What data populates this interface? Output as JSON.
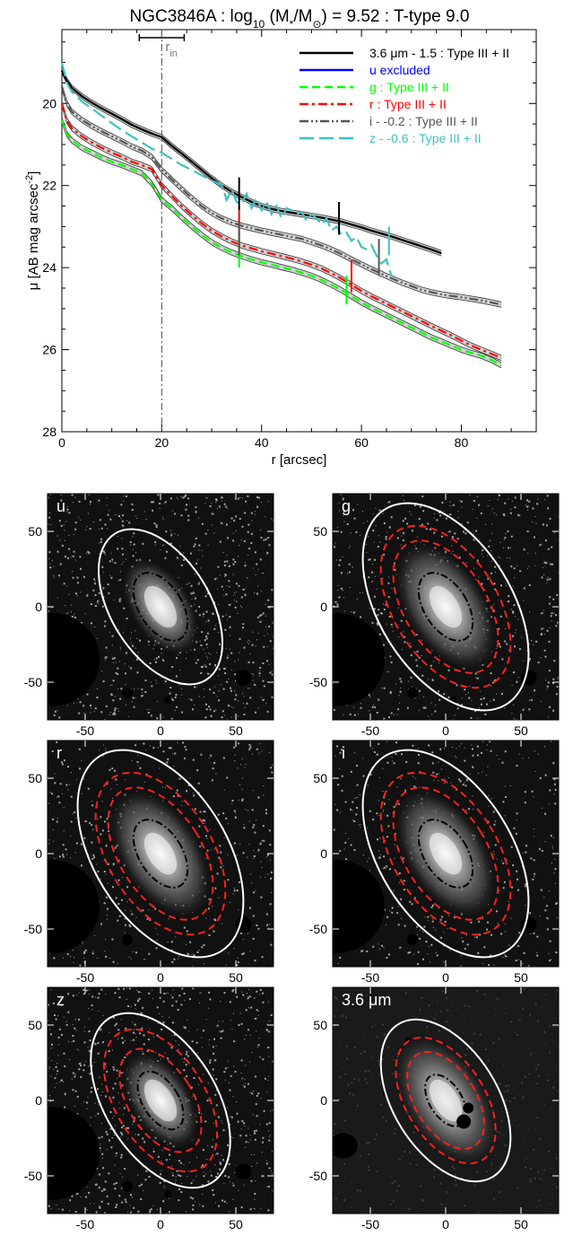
{
  "chart_data": [
    {
      "type": "line",
      "title": "NGC3846A : log",
      "title_sub": "10",
      "title_mid": " (M",
      "title_sub2": "*",
      "title_mid2": "/M",
      "title_sun": "⊙",
      "title_end": ") = 9.52 : T-type 9.0",
      "xlabel": "r [arcsec]",
      "ylabel": "μ [AB mag arcsec",
      "ylabel_sup": "-2",
      "ylabel_end": "]",
      "xlim": [
        0,
        95
      ],
      "ylim": [
        28,
        18.2
      ],
      "yreversed": true,
      "x_ticks": [
        "0",
        "20",
        "40",
        "60",
        "80"
      ],
      "x_tick_values": [
        0,
        20,
        40,
        60,
        80
      ],
      "y_ticks": [
        "20",
        "22",
        "24",
        "26",
        "28"
      ],
      "y_tick_values": [
        20,
        22,
        24,
        26,
        28
      ],
      "r_in": 20,
      "r_in_label": "r",
      "r_in_sub": "in",
      "r_in_errorbar": [
        15.5,
        24.5
      ],
      "legend_placement": "top-right",
      "legend": [
        {
          "label": "3.6 μm - 1.5 : Type III + II",
          "color": "#000000",
          "dash": "solid"
        },
        {
          "label": "u excluded",
          "color": "#0000ff",
          "dash": "solid"
        },
        {
          "label": "g : Type III + II",
          "color": "#00ff00",
          "dash": "dashed"
        },
        {
          "label": "r : Type III + II",
          "color": "#ff0000",
          "dash": "dashdot"
        },
        {
          "label": "i - -0.2 : Type III + II",
          "color": "#555555",
          "dash": "dashdotdot"
        },
        {
          "label": "z - -0.6 : Type III + II",
          "color": "#40c0c0",
          "dash": "longdash"
        }
      ],
      "series": [
        {
          "name": "3.6 μm",
          "color": "#000000",
          "dash": "solid",
          "x": [
            0,
            1,
            2,
            4,
            6,
            8,
            10,
            12,
            14,
            16,
            18,
            20,
            22,
            24,
            26,
            28,
            30,
            32,
            34,
            36,
            38,
            40,
            42,
            44,
            46,
            48,
            50,
            52,
            54,
            56,
            58,
            60,
            62,
            64,
            66,
            68,
            70,
            72,
            74,
            76
          ],
          "y": [
            19.2,
            19.45,
            19.62,
            19.82,
            19.98,
            20.12,
            20.25,
            20.38,
            20.52,
            20.63,
            20.73,
            20.82,
            21.03,
            21.22,
            21.42,
            21.62,
            21.82,
            22.0,
            22.15,
            22.28,
            22.4,
            22.5,
            22.57,
            22.62,
            22.66,
            22.7,
            22.74,
            22.78,
            22.83,
            22.88,
            22.95,
            23.02,
            23.1,
            23.17,
            23.24,
            23.32,
            23.4,
            23.48,
            23.56,
            23.65
          ]
        },
        {
          "name": "g",
          "color": "#00ff00",
          "dash": "dashed",
          "x": [
            0,
            1,
            2,
            4,
            6,
            8,
            10,
            12,
            14,
            16,
            18,
            20,
            22,
            24,
            26,
            28,
            30,
            32,
            34,
            36,
            38,
            40,
            42,
            44,
            46,
            48,
            50,
            52,
            54,
            56,
            58,
            60,
            62,
            64,
            66,
            68,
            70,
            72,
            74,
            76,
            78,
            80,
            82,
            84,
            86,
            88
          ],
          "y": [
            20.4,
            20.75,
            20.9,
            21.08,
            21.2,
            21.32,
            21.42,
            21.5,
            21.6,
            21.7,
            21.95,
            22.35,
            22.55,
            22.78,
            23.0,
            23.2,
            23.38,
            23.52,
            23.63,
            23.72,
            23.8,
            23.87,
            23.93,
            23.99,
            24.05,
            24.12,
            24.2,
            24.3,
            24.42,
            24.55,
            24.7,
            24.85,
            24.98,
            25.1,
            25.22,
            25.34,
            25.46,
            25.58,
            25.7,
            25.8,
            25.9,
            26.0,
            26.08,
            26.15,
            26.25,
            26.38
          ]
        },
        {
          "name": "r",
          "color": "#ff0000",
          "dash": "dashdot",
          "x": [
            0,
            1,
            2,
            4,
            6,
            8,
            10,
            12,
            14,
            16,
            18,
            20,
            22,
            24,
            26,
            28,
            30,
            32,
            34,
            36,
            38,
            40,
            42,
            44,
            46,
            48,
            50,
            52,
            54,
            56,
            58,
            60,
            62,
            64,
            66,
            68,
            70,
            72,
            74,
            76,
            78,
            80,
            82,
            84,
            86,
            88
          ],
          "y": [
            20.0,
            20.42,
            20.6,
            20.8,
            20.95,
            21.08,
            21.2,
            21.3,
            21.42,
            21.5,
            21.6,
            22.0,
            22.25,
            22.5,
            22.72,
            22.92,
            23.1,
            23.24,
            23.36,
            23.46,
            23.53,
            23.6,
            23.66,
            23.72,
            23.78,
            23.85,
            23.93,
            24.02,
            24.14,
            24.27,
            24.42,
            24.57,
            24.7,
            24.82,
            24.94,
            25.06,
            25.18,
            25.3,
            25.42,
            25.54,
            25.65,
            25.78,
            25.9,
            26.0,
            26.1,
            26.2
          ]
        },
        {
          "name": "i",
          "color": "#555555",
          "dash": "dashdotdot",
          "x": [
            0,
            1,
            2,
            4,
            6,
            8,
            10,
            12,
            14,
            16,
            18,
            20,
            22,
            24,
            26,
            28,
            30,
            32,
            34,
            36,
            38,
            40,
            42,
            44,
            46,
            48,
            50,
            52,
            54,
            56,
            58,
            60,
            62,
            64,
            66,
            68,
            70,
            72,
            74,
            76,
            78,
            80,
            82,
            84,
            86,
            88
          ],
          "y": [
            19.6,
            20.0,
            20.2,
            20.4,
            20.55,
            20.68,
            20.8,
            20.92,
            21.05,
            21.15,
            21.3,
            21.62,
            21.85,
            22.08,
            22.3,
            22.5,
            22.67,
            22.8,
            22.9,
            22.98,
            23.04,
            23.1,
            23.15,
            23.2,
            23.25,
            23.3,
            23.38,
            23.46,
            23.56,
            23.67,
            23.8,
            23.92,
            24.04,
            24.15,
            24.26,
            24.36,
            24.45,
            24.54,
            24.6,
            24.65,
            24.69,
            24.72,
            24.76,
            24.8,
            24.85,
            24.9
          ]
        },
        {
          "name": "z",
          "color": "#40c0c0",
          "dash": "longdash",
          "x": [
            0,
            1,
            2,
            4,
            6,
            8,
            10,
            12,
            14,
            16,
            18,
            20,
            22,
            24,
            26,
            28,
            30,
            32,
            33,
            34,
            35,
            36,
            37,
            38,
            39,
            40,
            41,
            42,
            43,
            44,
            45,
            46,
            47,
            48,
            49,
            50,
            51,
            52,
            53,
            54,
            55,
            56,
            57,
            58,
            59,
            60,
            61,
            62,
            63,
            64,
            65,
            66
          ],
          "y": [
            19.0,
            19.5,
            19.72,
            19.95,
            20.12,
            20.3,
            20.48,
            20.65,
            20.8,
            20.95,
            21.1,
            21.2,
            21.35,
            21.5,
            21.62,
            21.75,
            21.88,
            21.98,
            22.35,
            22.1,
            22.4,
            22.45,
            22.2,
            22.55,
            22.3,
            22.6,
            22.4,
            22.7,
            22.5,
            22.8,
            22.55,
            22.6,
            22.7,
            22.65,
            22.85,
            22.7,
            22.8,
            22.95,
            22.8,
            23.1,
            23.0,
            23.2,
            23.15,
            23.35,
            23.25,
            23.5,
            23.55,
            23.45,
            23.7,
            23.9,
            23.8,
            24.2
          ]
        }
      ],
      "breaks": [
        {
          "x": 35.5,
          "y1": 21.8,
          "y2": 22.6,
          "color": "#000000"
        },
        {
          "x": 55.5,
          "y1": 22.4,
          "y2": 23.2,
          "color": "#000000"
        },
        {
          "x": 35.5,
          "y1": 22.6,
          "y2": 23.5,
          "color": "#ff0000"
        },
        {
          "x": 35.5,
          "y1": 23.3,
          "y2": 24.0,
          "color": "#00ff00"
        },
        {
          "x": 35.5,
          "y1": 22.9,
          "y2": 23.7,
          "color": "#555555"
        },
        {
          "x": 58.0,
          "y1": 23.8,
          "y2": 24.6,
          "color": "#ff0000"
        },
        {
          "x": 57.0,
          "y1": 24.2,
          "y2": 24.9,
          "color": "#00ff00"
        },
        {
          "x": 63.5,
          "y1": 23.3,
          "y2": 24.2,
          "color": "#555555"
        },
        {
          "x": 65.5,
          "y1": 23.0,
          "y2": 23.7,
          "color": "#40c0c0"
        }
      ]
    },
    {
      "type": "image",
      "panels": [
        {
          "label": "u",
          "xlim": [
            -75,
            75
          ],
          "ylim": [
            -75,
            75
          ],
          "x_ticks": [
            "-50",
            "0",
            "50"
          ],
          "y_ticks": [
            "50",
            "0",
            "-50"
          ],
          "ellipses": {
            "white": [
              55,
              96
            ],
            "red": [],
            "black": [
              24,
              42
            ]
          },
          "angle": -32,
          "noise": "high"
        },
        {
          "label": "g",
          "xlim": [
            -75,
            75
          ],
          "ylim": [
            -75,
            75
          ],
          "x_ticks": [
            "-50",
            "0",
            "50"
          ],
          "y_ticks": [
            "50",
            "0",
            "-50"
          ],
          "ellipses": {
            "white": [
              74,
              128
            ],
            "red": [
              [
                46,
                82
              ],
              [
                58,
                100
              ]
            ],
            "black": [
              24,
              42
            ]
          },
          "angle": -32,
          "noise": "medium"
        },
        {
          "label": "r",
          "xlim": [
            -75,
            75
          ],
          "ylim": [
            -75,
            75
          ],
          "x_ticks": [
            "-50",
            "0",
            "50"
          ],
          "y_ticks": [
            "50",
            "0",
            "-50"
          ],
          "ellipses": {
            "white": [
              74,
              128
            ],
            "red": [
              [
                46,
                82
              ],
              [
                58,
                100
              ]
            ],
            "black": [
              24,
              42
            ]
          },
          "angle": -32,
          "noise": "low"
        },
        {
          "label": "i",
          "xlim": [
            -75,
            75
          ],
          "ylim": [
            -75,
            75
          ],
          "x_ticks": [
            "-50",
            "0",
            "50"
          ],
          "y_ticks": [
            "50",
            "0",
            "-50"
          ],
          "ellipses": {
            "white": [
              74,
              128
            ],
            "red": [
              [
                46,
                82
              ],
              [
                58,
                100
              ]
            ],
            "black": [
              24,
              42
            ]
          },
          "angle": -32,
          "noise": "low"
        },
        {
          "label": "z",
          "xlim": [
            -75,
            75
          ],
          "ylim": [
            -75,
            75
          ],
          "x_ticks": [
            "-50",
            "0",
            "50"
          ],
          "y_ticks": [
            "50",
            "0",
            "-50"
          ],
          "ellipses": {
            "white": [
              62,
              108
            ],
            "red": [
              [
                36,
                64
              ],
              [
                50,
                88
              ]
            ],
            "black": [
              20,
              36
            ]
          },
          "angle": -32,
          "noise": "high"
        },
        {
          "label": "3.6 μm",
          "xlim": [
            -75,
            75
          ],
          "ylim": [
            -75,
            75
          ],
          "x_ticks": [
            "-50",
            "0",
            "50"
          ],
          "y_ticks": [
            "50",
            "0",
            "-50"
          ],
          "ellipses": {
            "white": [
              58,
              100
            ],
            "red": [
              [
                34,
                60
              ],
              [
                44,
                78
              ]
            ],
            "black": [
              18,
              32
            ]
          },
          "angle": -32,
          "noise": "ir"
        }
      ]
    }
  ]
}
